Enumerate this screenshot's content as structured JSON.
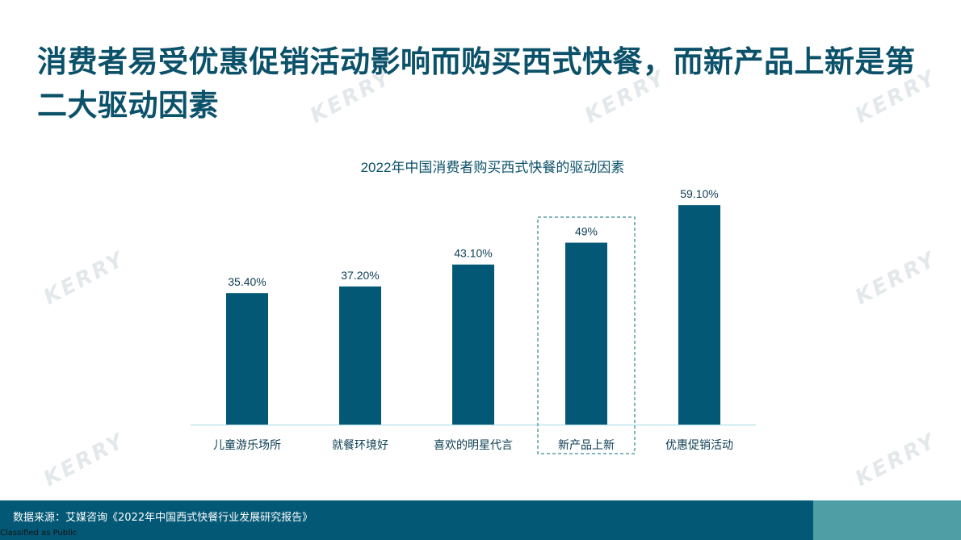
{
  "headline": "消费者易受优惠促销活动影响而购买西式快餐，而新产品上新是第二大驱动因素",
  "watermark": "KERRY",
  "footer": {
    "source": "数据来源：艾媒咨询《2022年中国西式快餐行业发展研究报告》",
    "classification": "Classified as Public"
  },
  "colors": {
    "bar": "#035876",
    "title": "#0b5169",
    "highlight_box": "#5a9ea6",
    "axis": "#bfe6ee",
    "footer": "#035876",
    "footer_accent": "#4f9ea5"
  },
  "chart_data": {
    "type": "bar",
    "title": "2022年中国消费者购买西式快餐的驱动因素",
    "categories": [
      "儿童游乐场所",
      "就餐环境好",
      "喜欢的明星代言",
      "新产品上新",
      "优惠促销活动"
    ],
    "values": [
      35.4,
      37.2,
      43.1,
      49,
      59.1
    ],
    "data_labels": [
      "35.40%",
      "37.20%",
      "43.10%",
      "49%",
      "59.10%"
    ],
    "unit": "%",
    "highlighted_category": "新产品上新",
    "ylim": [
      0,
      60
    ],
    "grid": false,
    "legend": "none"
  }
}
